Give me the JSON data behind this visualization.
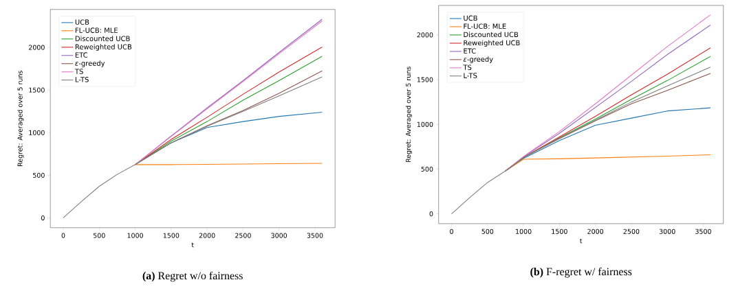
{
  "chart_data": [
    {
      "type": "line",
      "xlabel": "t",
      "ylabel": "Regret: Averaged over 5 runs",
      "annotations": [
        "**(a)** Regret w/o fairness"
      ],
      "x": [
        0,
        250,
        500,
        750,
        1000,
        1500,
        2000,
        2500,
        3000,
        3600
      ],
      "xlim": [
        -180,
        3780
      ],
      "ylim": [
        -115,
        2445
      ],
      "xticks": [
        0,
        500,
        1000,
        1500,
        2000,
        2500,
        3000,
        3500
      ],
      "yticks": [
        0,
        500,
        1000,
        1500,
        2000
      ],
      "legend": "top left",
      "grid": false,
      "marker": "none",
      "line_style": "solid",
      "series": [
        {
          "name": "UCB",
          "color": "#1f77b4",
          "values": [
            null,
            null,
            null,
            null,
            625,
            880,
            1060,
            1130,
            1190,
            1240
          ]
        },
        {
          "name": "FL-UCB: MLE",
          "color": "#ff7f0e",
          "values": [
            null,
            null,
            null,
            null,
            625,
            625,
            628,
            632,
            636,
            640
          ]
        },
        {
          "name": "Discounted UCB",
          "color": "#2ca02c",
          "values": [
            null,
            null,
            null,
            null,
            625,
            900,
            1130,
            1380,
            1610,
            1895
          ]
        },
        {
          "name": "Reweighted UCB",
          "color": "#d62728",
          "values": [
            null,
            null,
            null,
            null,
            625,
            920,
            1180,
            1450,
            1710,
            2005
          ]
        },
        {
          "name": "ETC",
          "color": "#9467bd",
          "values": [
            null,
            null,
            null,
            null,
            625,
            960,
            1290,
            1610,
            1940,
            2330
          ]
        },
        {
          "name": "*ε*-greedy",
          "color": "#8c564b",
          "values": [
            null,
            null,
            null,
            null,
            625,
            880,
            1080,
            1260,
            1460,
            1725
          ]
        },
        {
          "name": "TS",
          "color": "#e377c2",
          "values": [
            null,
            null,
            null,
            null,
            625,
            955,
            1280,
            1600,
            1925,
            2310
          ]
        },
        {
          "name": "L-TS",
          "color": "#7f7f7f",
          "values": [
            0,
            190,
            370,
            510,
            625,
            880,
            1075,
            1250,
            1430,
            1655
          ]
        }
      ]
    },
    {
      "type": "line",
      "xlabel": "t",
      "ylabel": "Regret: Averaged over 5 runs",
      "annotations": [
        "**(b)** F-regret w/ fairness"
      ],
      "x": [
        0,
        250,
        500,
        750,
        1000,
        1500,
        2000,
        2500,
        3000,
        3600
      ],
      "xlim": [
        -180,
        3780
      ],
      "ylim": [
        -110,
        2330
      ],
      "xticks": [
        0,
        500,
        1000,
        1500,
        2000,
        2500,
        3000,
        3500
      ],
      "yticks": [
        0,
        500,
        1000,
        1500,
        2000
      ],
      "legend": "top left",
      "grid": false,
      "marker": "none",
      "line_style": "solid",
      "series": [
        {
          "name": "UCB",
          "color": "#1f77b4",
          "values": [
            null,
            null,
            null,
            480,
            620,
            820,
            990,
            1070,
            1150,
            1185
          ]
        },
        {
          "name": "FL-UCB: MLE",
          "color": "#ff7f0e",
          "values": [
            null,
            null,
            null,
            480,
            610,
            615,
            625,
            635,
            645,
            660
          ]
        },
        {
          "name": "Discounted UCB",
          "color": "#2ca02c",
          "values": [
            null,
            null,
            null,
            480,
            630,
            850,
            1060,
            1280,
            1490,
            1760
          ]
        },
        {
          "name": "Reweighted UCB",
          "color": "#d62728",
          "values": [
            null,
            null,
            null,
            480,
            630,
            860,
            1090,
            1330,
            1560,
            1855
          ]
        },
        {
          "name": "ETC",
          "color": "#9467bd",
          "values": [
            null,
            null,
            null,
            480,
            635,
            900,
            1190,
            1480,
            1780,
            2110
          ]
        },
        {
          "name": "*ε*-greedy",
          "color": "#8c564b",
          "values": [
            null,
            null,
            null,
            480,
            630,
            840,
            1040,
            1230,
            1380,
            1570
          ]
        },
        {
          "name": "TS",
          "color": "#e377c2",
          "values": [
            null,
            null,
            null,
            480,
            640,
            920,
            1230,
            1550,
            1870,
            2225
          ]
        },
        {
          "name": "L-TS",
          "color": "#7f7f7f",
          "values": [
            0,
            180,
            350,
            480,
            630,
            845,
            1045,
            1250,
            1430,
            1640
          ]
        }
      ]
    }
  ]
}
